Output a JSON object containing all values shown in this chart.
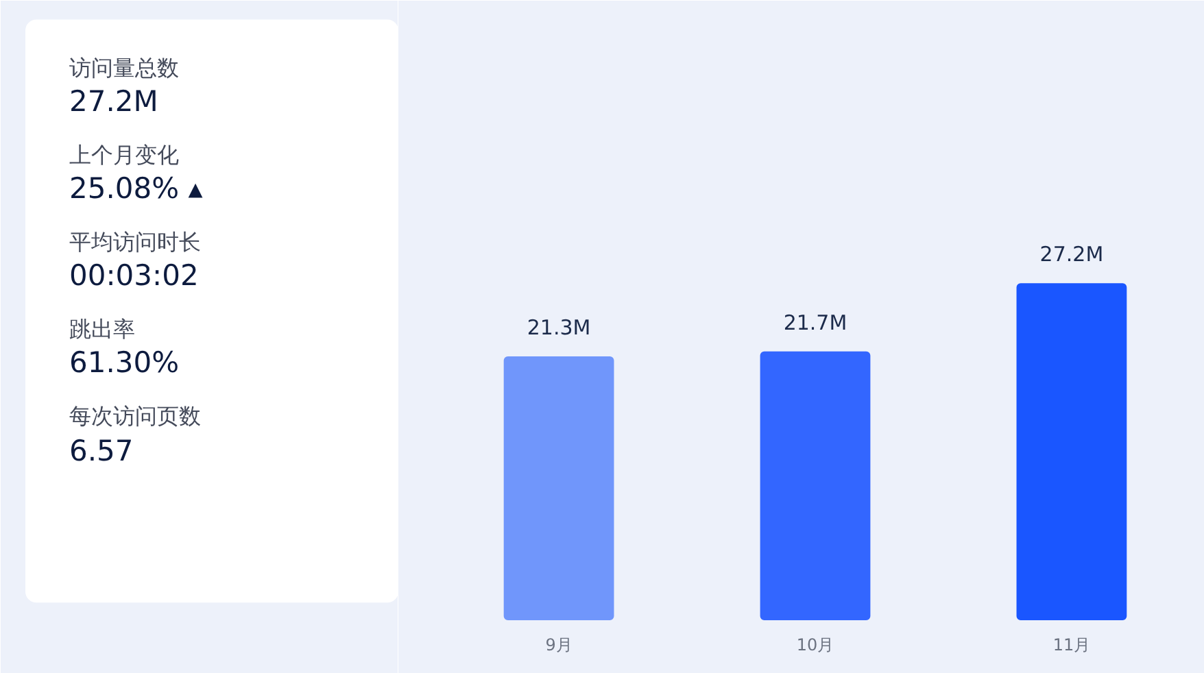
{
  "chart_data": [
    {
      "type": "other",
      "annotations": [
        "访问量总数",
        "27.2M",
        "上个月变化",
        "25.08% ▴",
        "平均访问时长",
        "00:03:02",
        "跳出率",
        "61.30%",
        "每次访问页数",
        "6.57"
      ]
    },
    {
      "type": "bar",
      "categories": [
        "9月",
        "10月",
        "11月"
      ],
      "values": [
        21.3,
        21.7,
        27.2
      ],
      "colors": [
        "#7096fb",
        "#3366ff",
        "#1a56ff"
      ],
      "value_labels": [
        "21.3M",
        "21.7M",
        "27.2M"
      ],
      "ylim": [
        0,
        50
      ],
      "tick_labels": "x",
      "grid": false
    }
  ]
}
